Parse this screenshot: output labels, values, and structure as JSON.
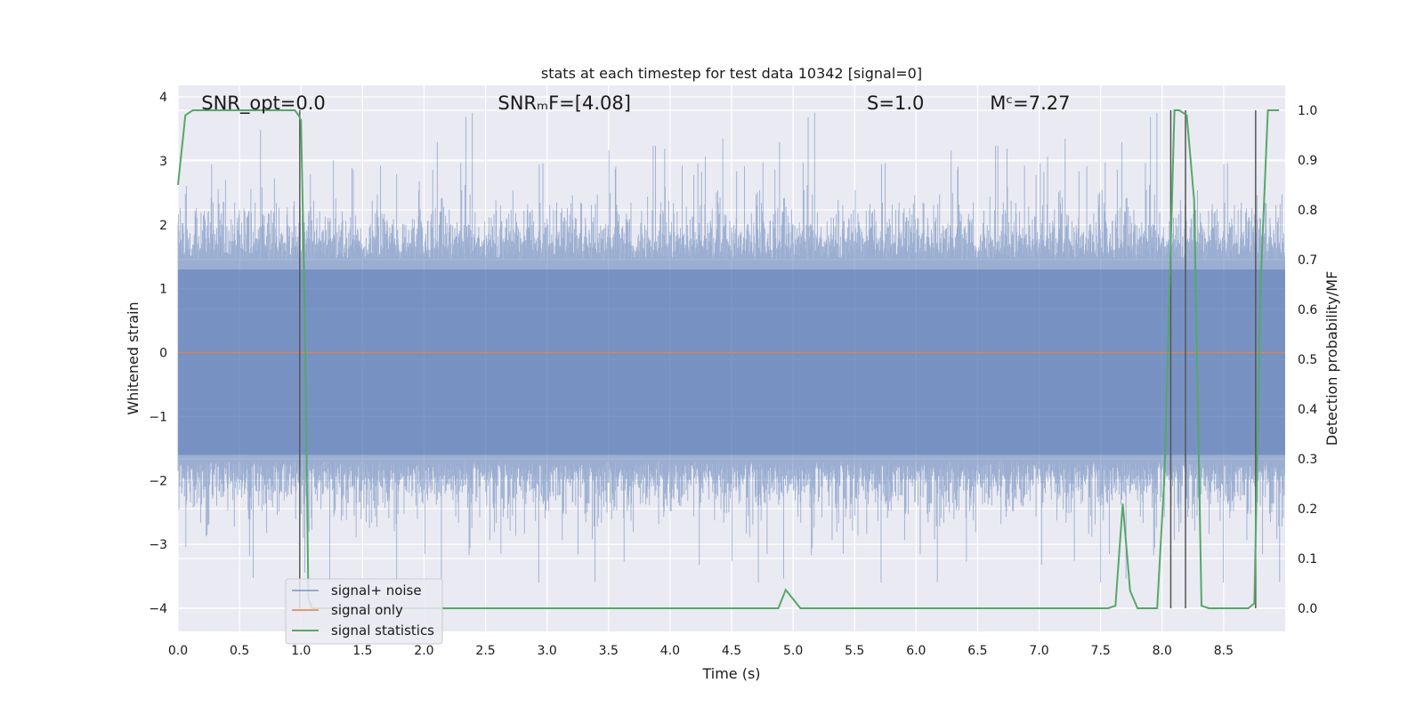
{
  "chart_data": {
    "type": "line",
    "title": "stats at each timestep for test data 10342 [signal=0]",
    "xlabel": "Time (s)",
    "ylabel": "Whitened strain",
    "y2label": "Detection probability/MF",
    "xlim": [
      0,
      9.0
    ],
    "ylim": [
      -4.4,
      4.15
    ],
    "y2lim": [
      -0.045,
      1.03
    ],
    "xticks": [
      "0.0",
      "0.5",
      "1.0",
      "1.5",
      "2.0",
      "2.5",
      "3.0",
      "3.5",
      "4.0",
      "4.5",
      "5.0",
      "5.5",
      "6.0",
      "6.5",
      "7.0",
      "7.5",
      "8.0",
      "8.5"
    ],
    "xtick_values": [
      0,
      0.5,
      1,
      1.5,
      2,
      2.5,
      3,
      3.5,
      4,
      4.5,
      5,
      5.5,
      6,
      6.5,
      7,
      7.5,
      8,
      8.5
    ],
    "yticks": [
      "4",
      "3",
      "2",
      "1",
      "0",
      "−1",
      "−2",
      "−3",
      "−4"
    ],
    "ytick_values": [
      4,
      3,
      2,
      1,
      0,
      -1,
      -2,
      -3,
      -4
    ],
    "y2ticks": [
      "1.0",
      "0.9",
      "0.8",
      "0.7",
      "0.6",
      "0.5",
      "0.4",
      "0.3",
      "0.2",
      "0.1",
      "0.0"
    ],
    "y2tick_values": [
      1.0,
      0.9,
      0.8,
      0.7,
      0.6,
      0.5,
      0.4,
      0.3,
      0.2,
      0.1,
      0.0
    ],
    "annotations": [
      {
        "id": "snr-opt",
        "text": "SNR_opt=0.0",
        "x": 0.19,
        "y": 3.9
      },
      {
        "id": "snr-mf",
        "text": "SNRₘF=[4.08]",
        "x": 2.6,
        "y": 3.9
      },
      {
        "id": "s-value",
        "text": "S=1.0",
        "x": 5.6,
        "y": 3.9
      },
      {
        "id": "mc-value",
        "text": "Mᶜ=7.27",
        "x": 6.6,
        "y": 3.9
      }
    ],
    "legend": {
      "position": "lower-left",
      "entries": [
        "signal+ noise",
        "signal only",
        "signal statistics"
      ]
    },
    "grid": true,
    "series": [
      {
        "name": "signal+ noise",
        "color": "#4c72b0",
        "description_kind": "dense noise band",
        "band_typical": [
          -1.7,
          1.45
        ],
        "spike_range": [
          -3.6,
          3.8
        ]
      },
      {
        "name": "signal only",
        "color": "#dd8452",
        "x": [
          0,
          9.0
        ],
        "y": [
          0,
          0
        ]
      },
      {
        "name": "signal statistics",
        "color": "#55a868",
        "axis": "right",
        "x": [
          0.0,
          0.06,
          0.12,
          0.2,
          0.5,
          0.9,
          0.95,
          0.98,
          1.0,
          1.03,
          1.06,
          1.09,
          1.12,
          1.5,
          2.0,
          3.0,
          4.0,
          4.88,
          4.94,
          5.06,
          6.0,
          7.0,
          7.56,
          7.62,
          7.68,
          7.74,
          7.8,
          7.86,
          7.96,
          8.02,
          8.1,
          8.14,
          8.2,
          8.26,
          8.32,
          8.38,
          8.45,
          8.7,
          8.75,
          8.8,
          8.86,
          8.95
        ],
        "y": [
          0.85,
          0.99,
          1.0,
          1.0,
          1.0,
          1.0,
          1.0,
          0.99,
          0.98,
          0.6,
          0.02,
          0.0,
          0.0,
          0.0,
          0.0,
          0.0,
          0.0,
          0.0,
          0.037,
          0.0,
          0.0,
          0.0,
          0.0,
          0.005,
          0.21,
          0.035,
          0.0,
          0.0,
          0.0,
          0.27,
          1.0,
          1.0,
          0.99,
          0.82,
          0.005,
          0.0,
          0.0,
          0.0,
          0.01,
          0.65,
          1.0,
          1.0
        ]
      }
    ],
    "vertical_markers": {
      "color": "#555555",
      "x": [
        0.99,
        8.07,
        8.19,
        8.76
      ],
      "y_top": 1.0,
      "y_bottom": 0.0
    }
  }
}
